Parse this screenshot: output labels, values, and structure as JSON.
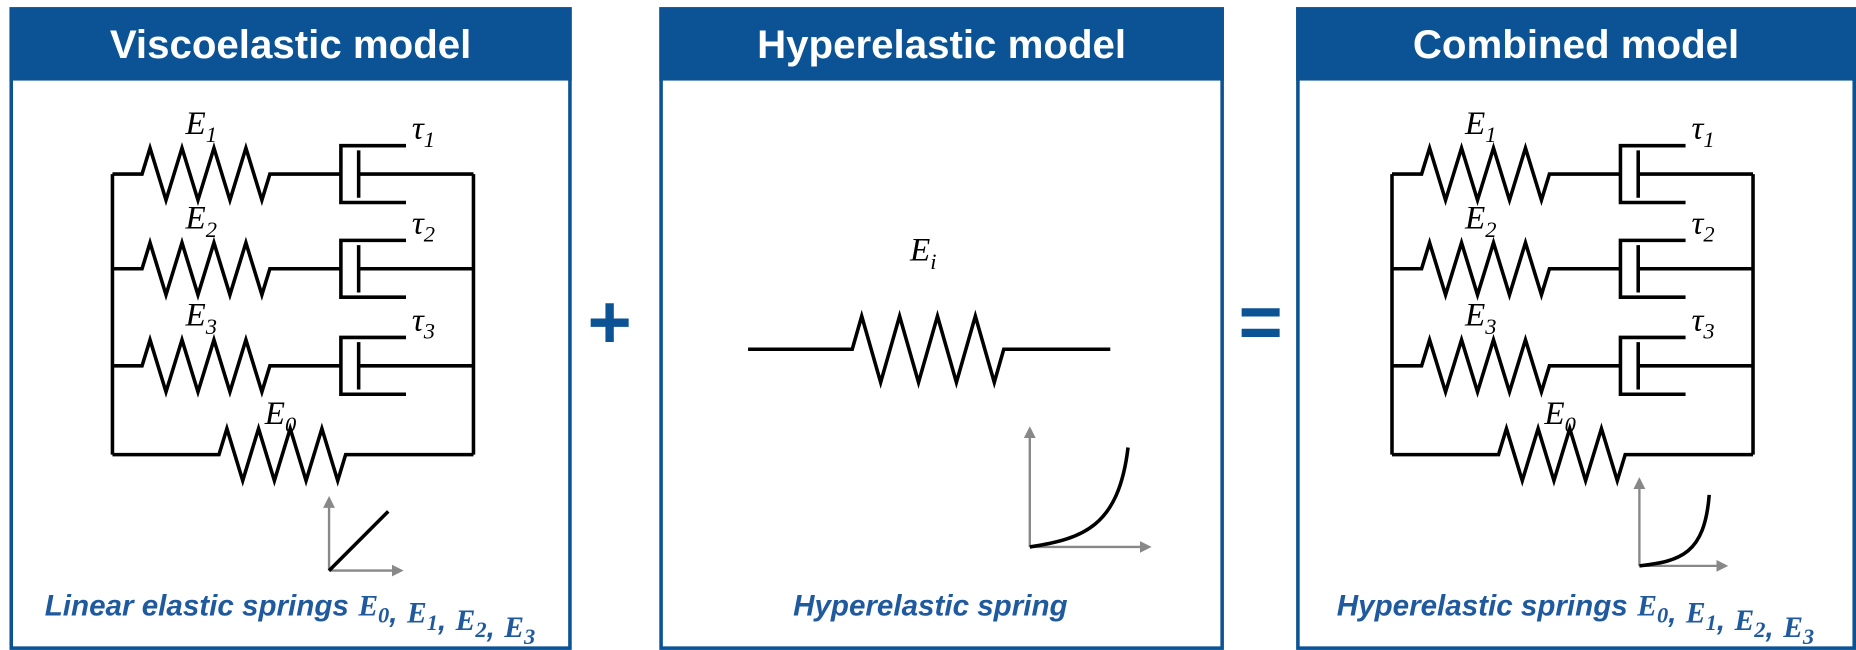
{
  "panels": [
    {
      "title": "Viscoelastic model",
      "branches": [
        {
          "spring": {
            "base": "E",
            "sub": "1"
          },
          "dashpot": {
            "base": "τ",
            "sub": "1"
          }
        },
        {
          "spring": {
            "base": "E",
            "sub": "2"
          },
          "dashpot": {
            "base": "τ",
            "sub": "2"
          }
        },
        {
          "spring": {
            "base": "E",
            "sub": "3"
          },
          "dashpot": {
            "base": "τ",
            "sub": "3"
          }
        }
      ],
      "parallel_spring": {
        "base": "E",
        "sub": "0"
      },
      "caption": {
        "text": "Linear elastic springs",
        "separator": ",",
        "terms": [
          {
            "base": "E",
            "sub": "0"
          },
          {
            "base": "E",
            "sub": "1"
          },
          {
            "base": "E",
            "sub": "2"
          },
          {
            "base": "E",
            "sub": "3"
          }
        ]
      }
    },
    {
      "title": "Hyperelastic model",
      "spring": {
        "base": "E",
        "sub": "i"
      },
      "caption": {
        "text": "Hyperelastic spring"
      }
    },
    {
      "title": "Combined model",
      "branches": [
        {
          "spring": {
            "base": "E",
            "sub": "1"
          },
          "dashpot": {
            "base": "τ",
            "sub": "1"
          }
        },
        {
          "spring": {
            "base": "E",
            "sub": "2"
          },
          "dashpot": {
            "base": "τ",
            "sub": "2"
          }
        },
        {
          "spring": {
            "base": "E",
            "sub": "3"
          },
          "dashpot": {
            "base": "τ",
            "sub": "3"
          }
        }
      ],
      "parallel_spring": {
        "base": "E",
        "sub": "0"
      },
      "caption": {
        "text": "Hyperelastic springs",
        "separator": ",",
        "terms": [
          {
            "base": "E",
            "sub": "0"
          },
          {
            "base": "E",
            "sub": "1"
          },
          {
            "base": "E",
            "sub": "2"
          },
          {
            "base": "E",
            "sub": "3"
          }
        ]
      }
    }
  ],
  "operators": [
    "+",
    "="
  ]
}
